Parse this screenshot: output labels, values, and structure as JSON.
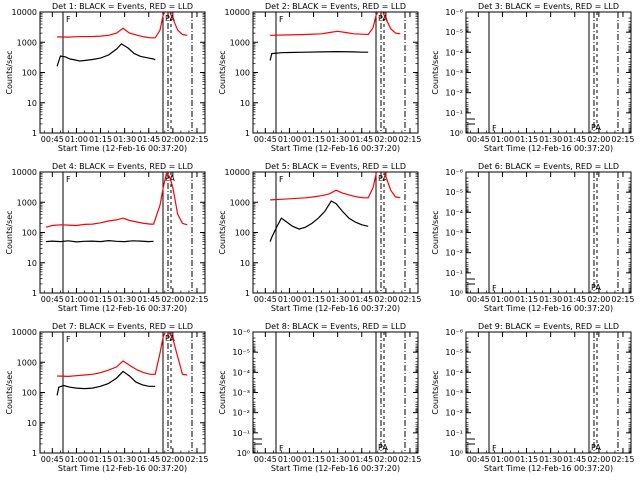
{
  "figure": {
    "xlabel": "Start Time (12-Feb-16 00:37:20)",
    "ylabel": "Counts/sec",
    "x_tick_labels": [
      "00:45",
      "01:00",
      "01:15",
      "01:30",
      "01:45",
      "02:00",
      "02:15"
    ],
    "colors": {
      "events": "#000000",
      "lld": "#ff0000"
    }
  },
  "chart_data": [
    {
      "type": "line",
      "title": "Det 1: BLACK = Events, RED = LLD",
      "xlabel": "Start Time (12-Feb-16 00:37:20)",
      "ylabel": "Counts/sec",
      "xlim": [
        "00:37:20",
        "02:20"
      ],
      "ylog": true,
      "ylim": [
        1,
        10000
      ],
      "y_tick_labels": [
        "1",
        "10",
        "100",
        "1000",
        "10000"
      ],
      "x_tick_labels": [
        "00:45",
        "01:00",
        "01:15",
        "01:30",
        "01:45",
        "02:00",
        "02:15"
      ],
      "annotations": [
        "F",
        "PA"
      ],
      "series": [
        {
          "name": "Events",
          "color": "#000000",
          "x": [
            "00:48",
            "00:50",
            "00:53",
            "00:56",
            "00:59",
            "01:02",
            "01:05",
            "01:10",
            "01:15",
            "01:20",
            "01:25",
            "01:28",
            "01:32",
            "01:36",
            "01:40",
            "01:45",
            "01:48",
            "01:49"
          ],
          "y": [
            160,
            350,
            330,
            280,
            260,
            240,
            250,
            270,
            300,
            380,
            600,
            880,
            650,
            420,
            340,
            300,
            280,
            260
          ]
        },
        {
          "name": "LLD",
          "color": "#ff0000",
          "x": [
            "00:48",
            "00:55",
            "01:00",
            "01:10",
            "01:15",
            "01:20",
            "01:25",
            "01:29",
            "01:33",
            "01:38",
            "01:42",
            "01:46",
            "01:49",
            "01:52",
            "01:54",
            "01:56",
            "01:58",
            "02:00",
            "02:03",
            "02:06",
            "02:09"
          ],
          "y": [
            1500,
            1480,
            1520,
            1550,
            1600,
            1700,
            2000,
            2900,
            2000,
            1700,
            1500,
            1400,
            1400,
            2500,
            8000,
            12000,
            10000,
            6000,
            2500,
            1800,
            1700
          ]
        }
      ]
    },
    {
      "type": "line",
      "title": "Det 2: BLACK = Events, RED = LLD",
      "xlabel": "Start Time (12-Feb-16 00:37:20)",
      "ylabel": "Counts/sec",
      "xlim": [
        "00:37:20",
        "02:20"
      ],
      "ylog": true,
      "ylim": [
        1,
        10000
      ],
      "y_tick_labels": [
        "1",
        "10",
        "100",
        "1000",
        "10000"
      ],
      "x_tick_labels": [
        "00:45",
        "01:00",
        "01:15",
        "01:30",
        "01:45",
        "02:00",
        "02:15"
      ],
      "annotations": [
        "F",
        "PA"
      ],
      "series": [
        {
          "name": "Events",
          "color": "#000000",
          "x": [
            "00:48",
            "00:49",
            "00:55",
            "01:00",
            "01:10",
            "01:20",
            "01:30",
            "01:40",
            "01:45",
            "01:49"
          ],
          "y": [
            250,
            420,
            450,
            460,
            470,
            480,
            490,
            480,
            470,
            470
          ]
        },
        {
          "name": "LLD",
          "color": "#ff0000",
          "x": [
            "00:48",
            "01:00",
            "01:10",
            "01:20",
            "01:25",
            "01:30",
            "01:35",
            "01:40",
            "01:45",
            "01:49",
            "01:52",
            "01:54",
            "01:56",
            "01:58",
            "02:00",
            "02:03",
            "02:06",
            "02:09"
          ],
          "y": [
            1700,
            1750,
            1800,
            1900,
            2100,
            2300,
            2100,
            1900,
            1850,
            1800,
            3000,
            8000,
            12000,
            10000,
            6000,
            2800,
            2000,
            1900
          ]
        }
      ]
    },
    {
      "type": "line",
      "title": "Det 3: BLACK = Events, RED = LLD",
      "xlabel": "Start Time (12-Feb-16 00:37:20)",
      "ylabel": "Counts/sec",
      "xlim": [
        "00:37:20",
        "02:20"
      ],
      "ylog": true,
      "ylim": [
        1,
        1e-06
      ],
      "y_tick_labels": [
        "10⁰",
        "10⁻¹",
        "10⁻²",
        "10⁻³",
        "10⁻⁴",
        "10⁻⁵",
        "10⁻⁶"
      ],
      "x_tick_labels": [
        "00:45",
        "01:00",
        "01:15",
        "01:30",
        "01:45",
        "02:00",
        "02:15"
      ],
      "annotations": [
        "F",
        "PA"
      ],
      "series": []
    },
    {
      "type": "line",
      "title": "Det 4: BLACK = Events, RED = LLD",
      "xlabel": "Start Time (12-Feb-16 00:37:20)",
      "ylabel": "Counts/sec",
      "xlim": [
        "00:37:20",
        "02:20"
      ],
      "ylog": true,
      "ylim": [
        1,
        10000
      ],
      "y_tick_labels": [
        "1",
        "10",
        "100",
        "1000",
        "10000"
      ],
      "x_tick_labels": [
        "00:45",
        "01:00",
        "01:15",
        "01:30",
        "01:45",
        "02:00",
        "02:15"
      ],
      "annotations": [
        "F",
        "PA"
      ],
      "series": [
        {
          "name": "Events",
          "color": "#000000",
          "x": [
            "00:41",
            "00:45",
            "00:50",
            "00:55",
            "01:00",
            "01:05",
            "01:10",
            "01:15",
            "01:20",
            "01:25",
            "01:30",
            "01:35",
            "01:40",
            "01:45",
            "01:48"
          ],
          "y": [
            50,
            52,
            50,
            53,
            49,
            51,
            52,
            50,
            54,
            51,
            50,
            53,
            52,
            50,
            51
          ]
        },
        {
          "name": "LLD",
          "color": "#ff0000",
          "x": [
            "00:41",
            "00:45",
            "00:50",
            "00:55",
            "01:00",
            "01:05",
            "01:10",
            "01:15",
            "01:20",
            "01:25",
            "01:29",
            "01:33",
            "01:38",
            "01:42",
            "01:46",
            "01:48",
            "01:52",
            "01:54",
            "01:56",
            "01:58",
            "02:00",
            "02:03",
            "02:06",
            "02:09"
          ],
          "y": [
            150,
            170,
            180,
            175,
            170,
            185,
            190,
            210,
            240,
            260,
            300,
            250,
            220,
            200,
            190,
            190,
            800,
            3000,
            9000,
            7000,
            3000,
            400,
            200,
            180
          ]
        }
      ]
    },
    {
      "type": "line",
      "title": "Det 5: BLACK = Events, RED = LLD",
      "xlabel": "Start Time (12-Feb-16 00:37:20)",
      "ylabel": "Counts/sec",
      "xlim": [
        "00:37:20",
        "02:20"
      ],
      "ylog": true,
      "ylim": [
        1,
        10000
      ],
      "y_tick_labels": [
        "1",
        "10",
        "100",
        "1000",
        "10000"
      ],
      "x_tick_labels": [
        "00:45",
        "01:00",
        "01:15",
        "01:30",
        "01:45",
        "02:00",
        "02:15"
      ],
      "annotations": [
        "F",
        "PA"
      ],
      "series": [
        {
          "name": "Events",
          "color": "#000000",
          "x": [
            "00:48",
            "00:49",
            "00:52",
            "00:55",
            "00:58",
            "01:02",
            "01:06",
            "01:10",
            "01:14",
            "01:18",
            "01:22",
            "01:26",
            "01:29",
            "01:33",
            "01:37",
            "01:41",
            "01:45",
            "01:49"
          ],
          "y": [
            50,
            70,
            150,
            300,
            230,
            160,
            130,
            150,
            200,
            300,
            500,
            1100,
            900,
            500,
            300,
            220,
            180,
            160
          ]
        },
        {
          "name": "LLD",
          "color": "#ff0000",
          "x": [
            "00:48",
            "00:55",
            "01:00",
            "01:05",
            "01:10",
            "01:15",
            "01:20",
            "01:25",
            "01:29",
            "01:33",
            "01:38",
            "01:42",
            "01:46",
            "01:49",
            "01:52",
            "01:54",
            "01:56",
            "01:58",
            "02:00",
            "02:03",
            "02:06",
            "02:09"
          ],
          "y": [
            1200,
            1250,
            1300,
            1350,
            1400,
            1500,
            1650,
            1900,
            2500,
            2000,
            1700,
            1500,
            1400,
            1400,
            3000,
            9000,
            15000,
            12000,
            7000,
            2500,
            1500,
            1400
          ]
        }
      ]
    },
    {
      "type": "line",
      "title": "Det 6: BLACK = Events, RED = LLD",
      "xlabel": "Start Time (12-Feb-16 00:37:20)",
      "ylabel": "Counts/sec",
      "xlim": [
        "00:37:20",
        "02:20"
      ],
      "ylog": true,
      "ylim": [
        1,
        1e-06
      ],
      "y_tick_labels": [
        "10⁰",
        "10⁻¹",
        "10⁻²",
        "10⁻³",
        "10⁻⁴",
        "10⁻⁵",
        "10⁻⁶"
      ],
      "x_tick_labels": [
        "00:45",
        "01:00",
        "01:15",
        "01:30",
        "01:45",
        "02:00",
        "02:15"
      ],
      "annotations": [
        "F",
        "PA"
      ],
      "series": []
    },
    {
      "type": "line",
      "title": "Det 7: BLACK = Events, RED = LLD",
      "xlabel": "Start Time (12-Feb-16 00:37:20)",
      "ylabel": "Counts/sec",
      "xlim": [
        "00:37:20",
        "02:20"
      ],
      "ylog": true,
      "ylim": [
        1,
        10000
      ],
      "y_tick_labels": [
        "1",
        "10",
        "100",
        "1000",
        "10000"
      ],
      "x_tick_labels": [
        "00:45",
        "01:00",
        "01:15",
        "01:30",
        "01:45",
        "02:00",
        "02:15"
      ],
      "annotations": [
        "F",
        "PA"
      ],
      "series": [
        {
          "name": "Events",
          "color": "#000000",
          "x": [
            "00:48",
            "00:49",
            "00:52",
            "00:56",
            "01:00",
            "01:05",
            "01:10",
            "01:15",
            "01:20",
            "01:25",
            "01:29",
            "01:33",
            "01:37",
            "01:41",
            "01:45",
            "01:49"
          ],
          "y": [
            80,
            150,
            170,
            150,
            140,
            135,
            140,
            160,
            200,
            300,
            500,
            350,
            220,
            180,
            160,
            160
          ]
        },
        {
          "name": "LLD",
          "color": "#ff0000",
          "x": [
            "00:48",
            "00:55",
            "01:00",
            "01:05",
            "01:10",
            "01:15",
            "01:20",
            "01:25",
            "01:29",
            "01:33",
            "01:38",
            "01:42",
            "01:46",
            "01:49",
            "01:52",
            "01:54",
            "01:56",
            "01:58",
            "02:00",
            "02:03",
            "02:06",
            "02:09"
          ],
          "y": [
            350,
            340,
            360,
            380,
            400,
            450,
            550,
            700,
            1100,
            800,
            550,
            450,
            400,
            400,
            2000,
            7000,
            12000,
            9000,
            6000,
            1500,
            400,
            380
          ]
        }
      ]
    },
    {
      "type": "line",
      "title": "Det 8: BLACK = Events, RED = LLD",
      "xlabel": "Start Time (12-Feb-16 00:37:20)",
      "ylabel": "Counts/sec",
      "xlim": [
        "00:37:20",
        "02:20"
      ],
      "ylog": true,
      "ylim": [
        1,
        1e-06
      ],
      "y_tick_labels": [
        "10⁰",
        "10⁻¹",
        "10⁻²",
        "10⁻³",
        "10⁻⁴",
        "10⁻⁵",
        "10⁻⁶"
      ],
      "x_tick_labels": [
        "00:45",
        "01:00",
        "01:15",
        "01:30",
        "01:45",
        "02:00",
        "02:15"
      ],
      "annotations": [
        "F",
        "PA"
      ],
      "series": []
    },
    {
      "type": "line",
      "title": "Det 9: BLACK = Events, RED = LLD",
      "xlabel": "Start Time (12-Feb-16 00:37:20)",
      "ylabel": "Counts/sec",
      "xlim": [
        "00:37:20",
        "02:20"
      ],
      "ylog": true,
      "ylim": [
        1,
        1e-06
      ],
      "y_tick_labels": [
        "10⁰",
        "10⁻¹",
        "10⁻²",
        "10⁻³",
        "10⁻⁴",
        "10⁻⁵",
        "10⁻⁶"
      ],
      "x_tick_labels": [
        "00:45",
        "01:00",
        "01:15",
        "01:30",
        "01:45",
        "02:00",
        "02:15"
      ],
      "annotations": [
        "F",
        "PA"
      ],
      "series": []
    }
  ]
}
